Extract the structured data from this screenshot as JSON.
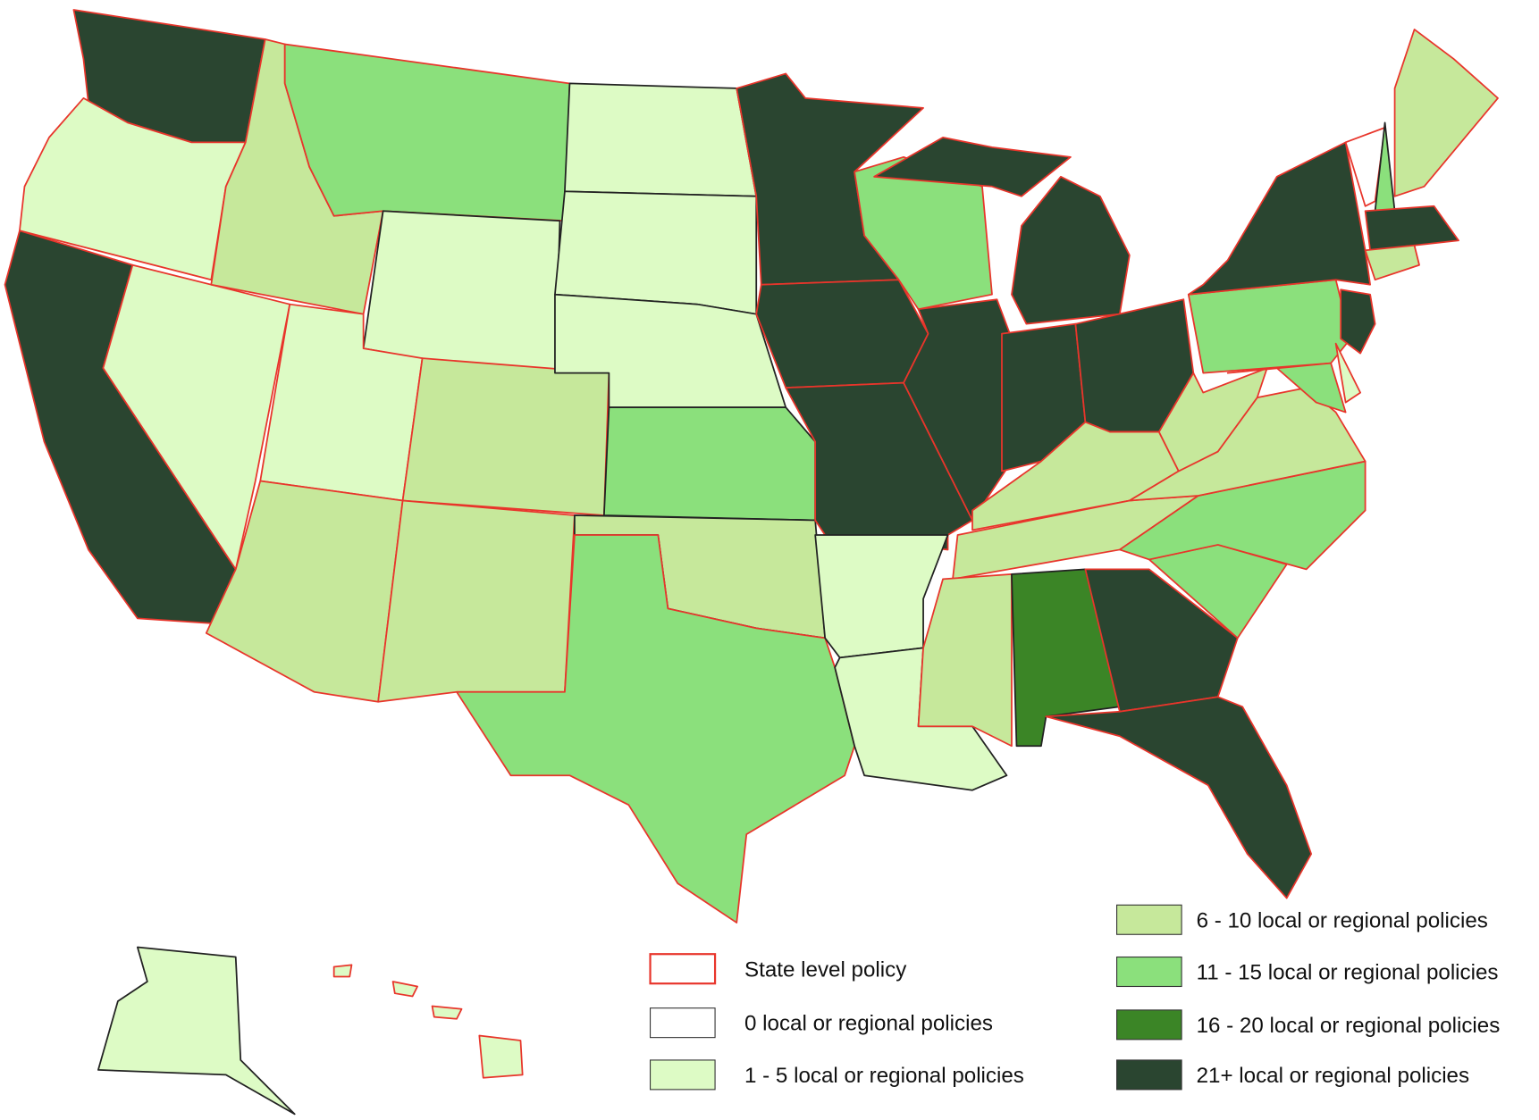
{
  "legend": {
    "items": [
      {
        "label": "State level policy",
        "fill": "#ffffff",
        "border": "#e8352b"
      },
      {
        "label": "0 local or regional policies",
        "fill": "#ffffff",
        "border": "#333333"
      },
      {
        "label": "1 - 5 local or regional policies",
        "fill": "#ddfbc5",
        "border": "#333333"
      },
      {
        "label": "6 - 10 local or regional policies",
        "fill": "#c6e89b",
        "border": "#333333"
      },
      {
        "label": "11 - 15 local or regional policies",
        "fill": "#8be07c",
        "border": "#333333"
      },
      {
        "label": "16 - 20 local or regional policies",
        "fill": "#3b8526",
        "border": "#333333"
      },
      {
        "label": "21+ local or regional policies",
        "fill": "#2a4530",
        "border": "#333333"
      }
    ]
  }
}
